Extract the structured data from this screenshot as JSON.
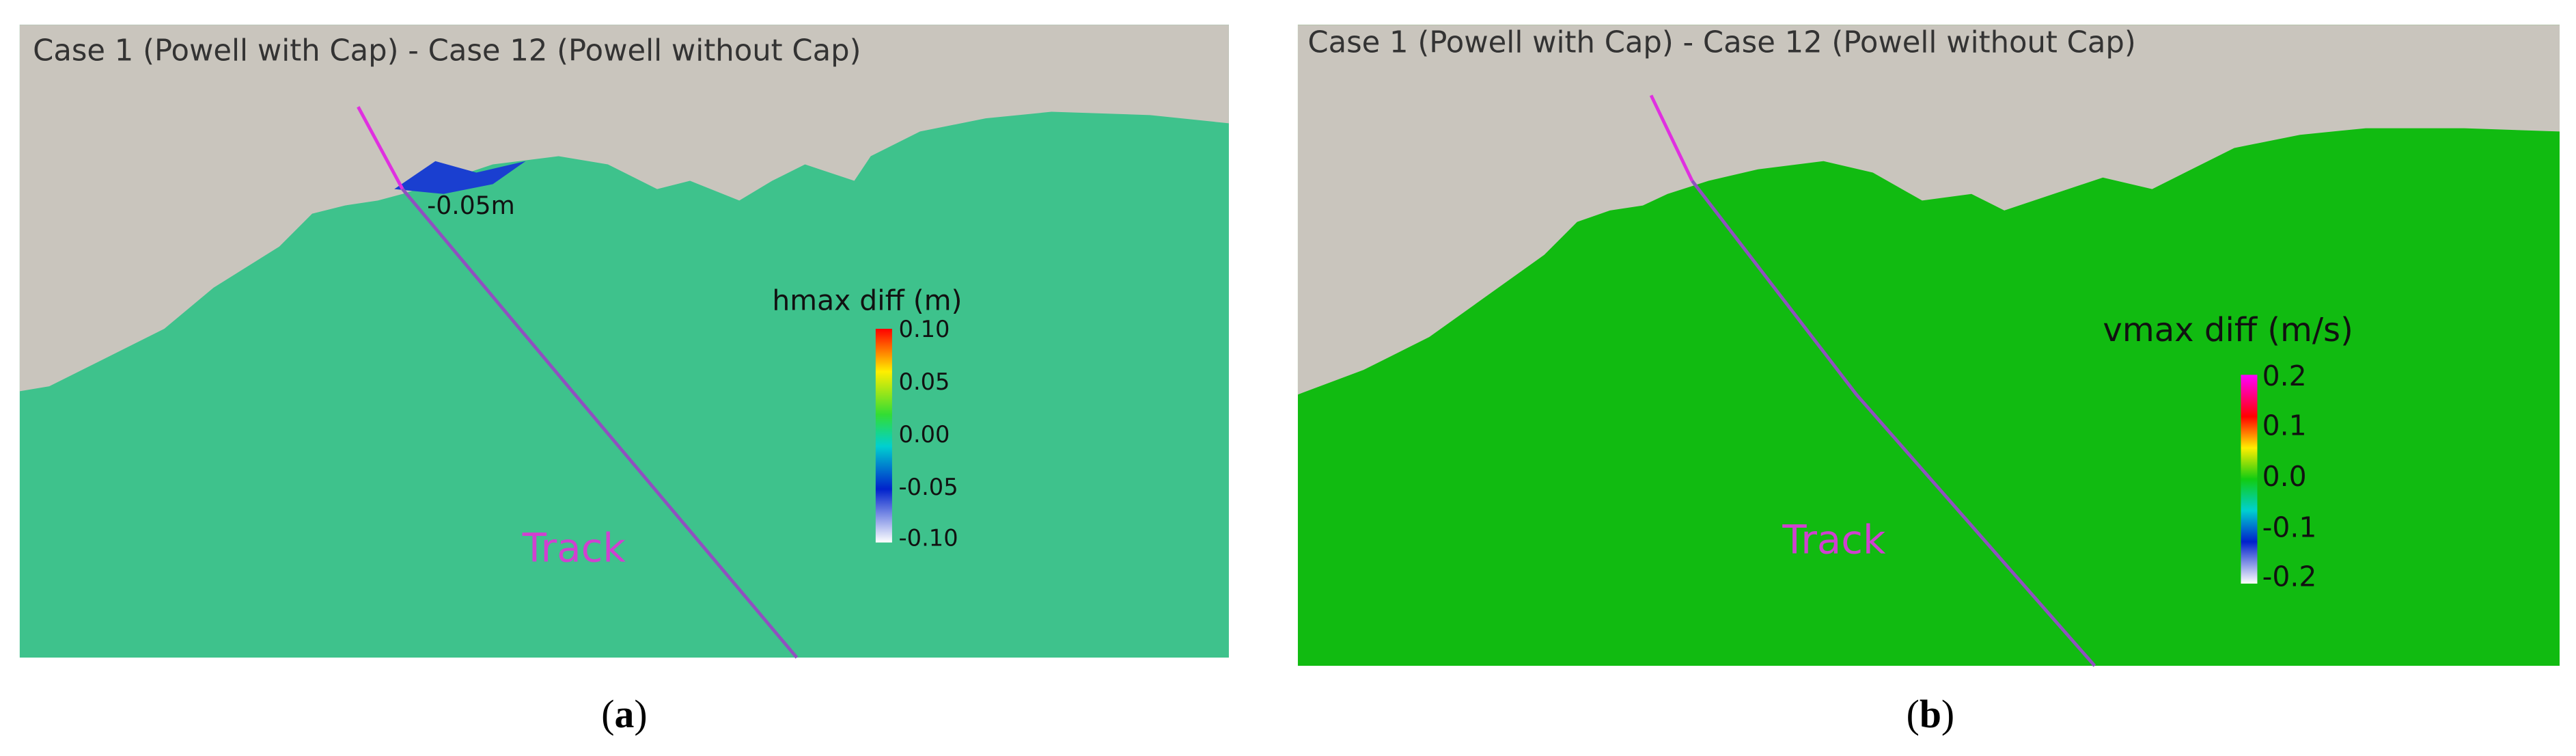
{
  "panels": [
    {
      "title": "Case 1 (Powell with Cap) - Case 12 (Powell without Cap)",
      "annotation": "-0.05m",
      "colorbar": {
        "title": "hmax diff (m)",
        "ticks": [
          "0.10",
          "0.05",
          "0.00",
          "-0.05",
          "-0.10"
        ]
      },
      "track_label": "Track",
      "caption": {
        "open": "(",
        "letter": "a",
        "close": ")"
      }
    },
    {
      "title": "Case 1 (Powell with Cap) - Case 12 (Powell without Cap)",
      "colorbar": {
        "title": "vmax diff (m/s)",
        "ticks": [
          "0.2",
          "0.1",
          "0.0",
          "-0.1",
          "-0.2"
        ]
      },
      "track_label": "Track",
      "caption": {
        "open": "(",
        "letter": "b",
        "close": ")"
      }
    }
  ]
}
